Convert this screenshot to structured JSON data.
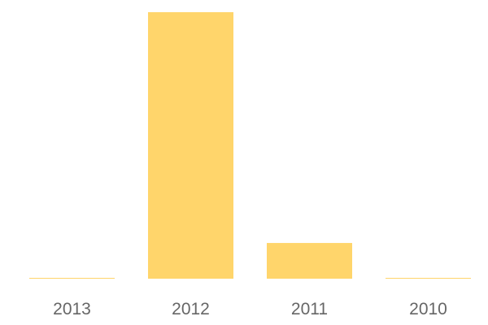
{
  "chart_data": {
    "type": "bar",
    "categories": [
      "2013",
      "2012",
      "2011",
      "2010"
    ],
    "values": [
      0.3,
      100,
      13.4,
      0.3
    ],
    "title": "",
    "xlabel": "",
    "ylabel": "",
    "ylim": [
      0,
      100
    ],
    "grid": false,
    "legend": "none",
    "bar_color": "#FFD56B",
    "tick_label_color": "#666666"
  }
}
